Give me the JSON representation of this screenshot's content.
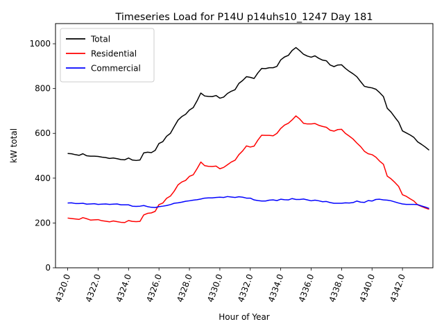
{
  "chart_data": {
    "type": "line",
    "title": "Timeseries Load for P14U p14uhs10_1247  Day 181",
    "xlabel": "Hour of Year",
    "ylabel": "kW total",
    "xlim": [
      4319.2,
      4344.0
    ],
    "ylim": [
      0,
      1090
    ],
    "x_start": 4320.0,
    "x_step": 0.25,
    "x_ticks": [
      4320,
      4322,
      4324,
      4326,
      4328,
      4330,
      4332,
      4334,
      4336,
      4338,
      4340,
      4342
    ],
    "x_tick_labels": [
      "4320.0",
      "4322.0",
      "4324.0",
      "4326.0",
      "4328.0",
      "4330.0",
      "4332.0",
      "4334.0",
      "4336.0",
      "4338.0",
      "4340.0",
      "4342.0"
    ],
    "y_ticks": [
      0,
      200,
      400,
      600,
      800,
      1000
    ],
    "y_tick_labels": [
      "0",
      "200",
      "400",
      "600",
      "800",
      "1000"
    ],
    "legend_position": "top-left",
    "grid": false,
    "series": [
      {
        "name": "Total",
        "color": "#000000",
        "values": [
          510,
          509,
          505,
          502,
          509,
          500,
          498,
          498,
          497,
          494,
          492,
          488,
          490,
          487,
          483,
          482,
          490,
          481,
          479,
          481,
          513,
          516,
          514,
          524,
          555,
          563,
          587,
          600,
          630,
          659,
          675,
          685,
          704,
          715,
          745,
          780,
          767,
          765,
          764,
          769,
          757,
          762,
          778,
          788,
          795,
          823,
          836,
          853,
          850,
          845,
          870,
          890,
          889,
          893,
          893,
          899,
          928,
          941,
          948,
          970,
          983,
          969,
          953,
          945,
          940,
          946,
          935,
          927,
          924,
          905,
          898,
          905,
          906,
          890,
          877,
          866,
          853,
          831,
          810,
          806,
          803,
          797,
          782,
          764,
          712,
          695,
          672,
          650,
          611,
          602,
          593,
          582,
          562,
          551,
          539,
          525
        ]
      },
      {
        "name": "Residential",
        "color": "#ff0000",
        "values": [
          222,
          220,
          218,
          216,
          224,
          219,
          213,
          214,
          215,
          210,
          208,
          205,
          209,
          206,
          203,
          202,
          211,
          207,
          206,
          207,
          236,
          243,
          245,
          252,
          282,
          289,
          310,
          320,
          342,
          370,
          383,
          390,
          408,
          415,
          442,
          472,
          456,
          453,
          452,
          454,
          442,
          448,
          460,
          472,
          480,
          505,
          522,
          544,
          539,
          543,
          570,
          592,
          591,
          591,
          589,
          600,
          622,
          637,
          645,
          660,
          678,
          664,
          645,
          642,
          642,
          644,
          636,
          631,
          627,
          614,
          610,
          617,
          618,
          600,
          588,
          575,
          557,
          541,
          520,
          509,
          505,
          494,
          476,
          462,
          409,
          397,
          381,
          363,
          326,
          319,
          308,
          298,
          281,
          274,
          267,
          261
        ]
      },
      {
        "name": "Commercial",
        "color": "#0000ff",
        "values": [
          289,
          290,
          287,
          287,
          288,
          284,
          285,
          286,
          283,
          284,
          285,
          283,
          284,
          285,
          281,
          281,
          281,
          275,
          274,
          275,
          278,
          273,
          270,
          269,
          273,
          275,
          278,
          282,
          288,
          290,
          293,
          297,
          299,
          302,
          304,
          307,
          311,
          312,
          312,
          314,
          315,
          314,
          318,
          316,
          314,
          317,
          315,
          311,
          311,
          303,
          300,
          298,
          298,
          302,
          303,
          300,
          306,
          304,
          303,
          309,
          305,
          305,
          307,
          303,
          299,
          302,
          299,
          295,
          296,
          291,
          288,
          288,
          288,
          290,
          289,
          291,
          298,
          293,
          292,
          300,
          298,
          305,
          306,
          303,
          302,
          299,
          294,
          289,
          285,
          283,
          283,
          283,
          282,
          276,
          271,
          265
        ]
      }
    ]
  }
}
